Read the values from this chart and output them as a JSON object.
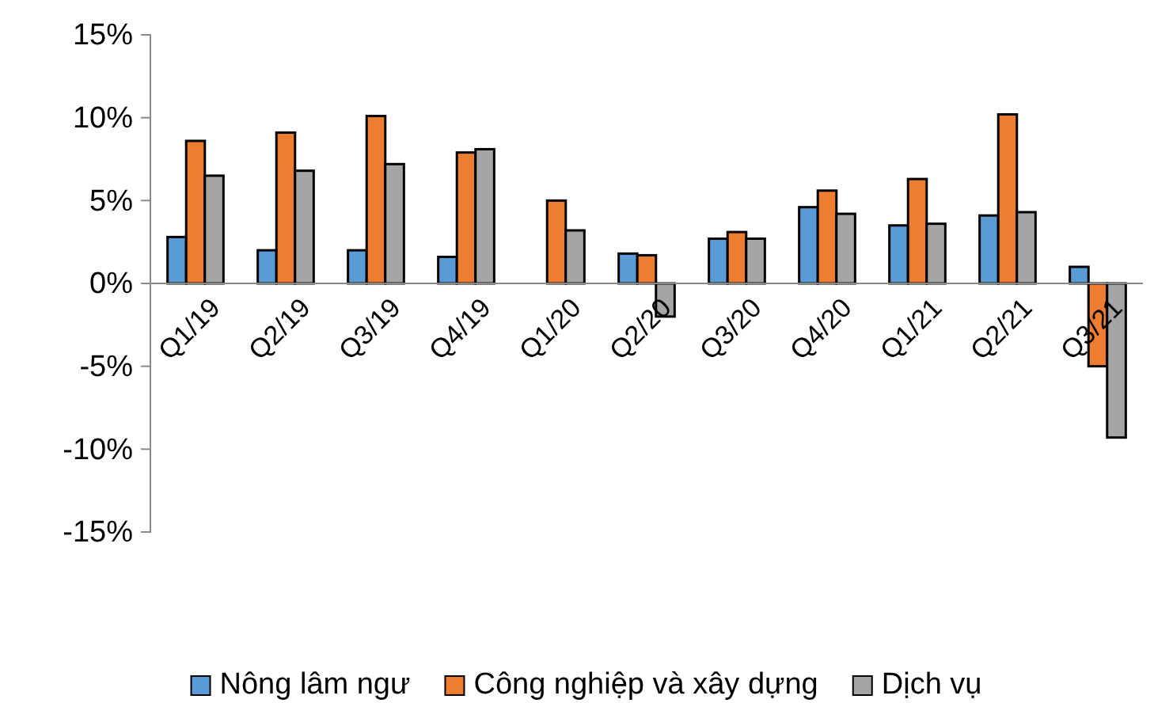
{
  "chart_data": {
    "type": "bar",
    "categories": [
      "Q1/19",
      "Q2/19",
      "Q3/19",
      "Q4/19",
      "Q1/20",
      "Q2/20",
      "Q3/20",
      "Q4/20",
      "Q1/21",
      "Q2/21",
      "Q3/21"
    ],
    "series": [
      {
        "name": "Nông lâm ngư",
        "color": "#5b9bd5",
        "values": [
          2.8,
          2.0,
          2.0,
          1.6,
          0,
          1.8,
          2.7,
          4.6,
          3.5,
          4.1,
          1.0
        ]
      },
      {
        "name": "Công nghiệp và xây dựng",
        "color": "#ed7d31",
        "values": [
          8.6,
          9.1,
          10.1,
          7.9,
          5.0,
          1.7,
          3.1,
          5.6,
          6.3,
          10.2,
          -5.0
        ]
      },
      {
        "name": "Dịch vụ",
        "color": "#a5a5a5",
        "values": [
          6.5,
          6.8,
          7.2,
          8.1,
          3.2,
          -2.0,
          2.7,
          4.2,
          3.6,
          4.3,
          -9.3
        ]
      }
    ],
    "ylim": [
      -15,
      15
    ],
    "yticks": [
      {
        "value": -15,
        "label": "-15%"
      },
      {
        "value": -10,
        "label": "-10%"
      },
      {
        "value": -5,
        "label": "-5%"
      },
      {
        "value": 0,
        "label": "0%"
      },
      {
        "value": 5,
        "label": "5%"
      },
      {
        "value": 10,
        "label": "10%"
      },
      {
        "value": 15,
        "label": "15%"
      }
    ],
    "grid": false,
    "legend": "bottom"
  }
}
